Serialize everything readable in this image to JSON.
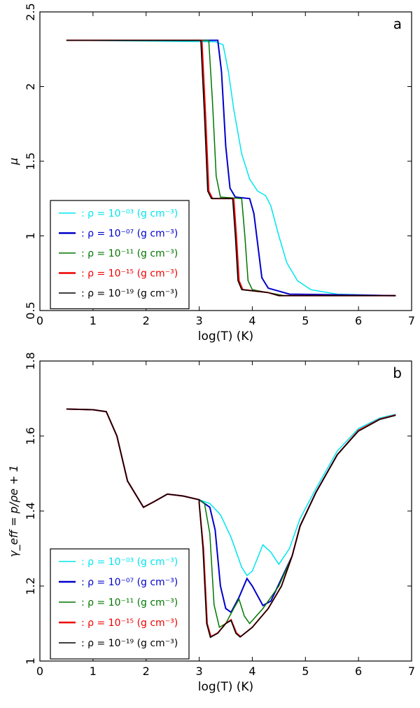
{
  "chart_data": [
    {
      "type": "line",
      "panel_label": "a",
      "xlabel": "log(T) (K)",
      "ylabel": "μ",
      "xlim": [
        0,
        7
      ],
      "ylim": [
        0.5,
        2.5
      ],
      "xticks": [
        "0",
        "1",
        "2",
        "3",
        "4",
        "5",
        "6",
        "7"
      ],
      "yticks": [
        "0.5",
        "1",
        "1.5",
        "2",
        "2.5"
      ],
      "legend_position": "lower-left",
      "series": [
        {
          "name": ": ρ = 10⁻⁰³ (g cm⁻³)",
          "color": "#00e5ee",
          "points": [
            [
              0.5,
              2.31
            ],
            [
              3.3,
              2.3
            ],
            [
              3.45,
              2.28
            ],
            [
              3.55,
              2.1
            ],
            [
              3.65,
              1.85
            ],
            [
              3.8,
              1.55
            ],
            [
              3.95,
              1.38
            ],
            [
              4.1,
              1.3
            ],
            [
              4.25,
              1.27
            ],
            [
              4.35,
              1.2
            ],
            [
              4.5,
              1.0
            ],
            [
              4.65,
              0.82
            ],
            [
              4.85,
              0.7
            ],
            [
              5.1,
              0.64
            ],
            [
              5.6,
              0.61
            ],
            [
              6.7,
              0.6
            ]
          ]
        },
        {
          "name": ": ρ = 10⁻⁰⁷ (g cm⁻³)",
          "color": "#0000cc",
          "points": [
            [
              0.5,
              2.31
            ],
            [
              3.35,
              2.31
            ],
            [
              3.42,
              2.1
            ],
            [
              3.5,
              1.6
            ],
            [
              3.58,
              1.32
            ],
            [
              3.68,
              1.26
            ],
            [
              3.95,
              1.25
            ],
            [
              4.03,
              1.15
            ],
            [
              4.1,
              0.95
            ],
            [
              4.18,
              0.72
            ],
            [
              4.3,
              0.65
            ],
            [
              4.5,
              0.63
            ],
            [
              4.7,
              0.61
            ],
            [
              6.7,
              0.6
            ]
          ]
        },
        {
          "name": ": ρ = 10⁻¹¹ (g cm⁻³)",
          "color": "#007700",
          "points": [
            [
              0.5,
              2.31
            ],
            [
              3.18,
              2.31
            ],
            [
              3.25,
              1.9
            ],
            [
              3.32,
              1.4
            ],
            [
              3.4,
              1.26
            ],
            [
              3.8,
              1.25
            ],
            [
              3.86,
              1.0
            ],
            [
              3.92,
              0.7
            ],
            [
              4.0,
              0.64
            ],
            [
              4.3,
              0.62
            ],
            [
              4.6,
              0.6
            ],
            [
              6.7,
              0.6
            ]
          ]
        },
        {
          "name": ": ρ = 10⁻¹⁵ (g cm⁻³)",
          "color": "#ee0000",
          "points": [
            [
              0.5,
              2.31
            ],
            [
              3.05,
              2.31
            ],
            [
              3.12,
              1.8
            ],
            [
              3.18,
              1.3
            ],
            [
              3.25,
              1.25
            ],
            [
              3.65,
              1.25
            ],
            [
              3.7,
              1.0
            ],
            [
              3.75,
              0.7
            ],
            [
              3.82,
              0.64
            ],
            [
              4.3,
              0.62
            ],
            [
              4.5,
              0.6
            ],
            [
              6.7,
              0.6
            ]
          ]
        },
        {
          "name": ": ρ = 10⁻¹⁹ (g cm⁻³)",
          "color": "#000000",
          "points": [
            [
              0.5,
              2.31
            ],
            [
              3.03,
              2.31
            ],
            [
              3.1,
              1.8
            ],
            [
              3.16,
              1.3
            ],
            [
              3.23,
              1.25
            ],
            [
              3.63,
              1.25
            ],
            [
              3.68,
              1.0
            ],
            [
              3.73,
              0.7
            ],
            [
              3.8,
              0.64
            ],
            [
              4.3,
              0.62
            ],
            [
              4.5,
              0.6
            ],
            [
              6.7,
              0.6
            ]
          ]
        }
      ]
    },
    {
      "type": "line",
      "panel_label": "b",
      "xlabel": "log(T) (K)",
      "ylabel": "γ_eff = p/ρe + 1",
      "xlim": [
        0,
        7
      ],
      "ylim": [
        1.0,
        1.8
      ],
      "xticks": [
        "0",
        "1",
        "2",
        "3",
        "4",
        "5",
        "6",
        "7"
      ],
      "yticks": [
        "1",
        "1.2",
        "1.4",
        "1.6",
        "1.8"
      ],
      "legend_position": "lower-left",
      "common": [
        [
          0.5,
          1.672
        ],
        [
          1.0,
          1.67
        ],
        [
          1.25,
          1.665
        ],
        [
          1.45,
          1.6
        ],
        [
          1.65,
          1.48
        ],
        [
          1.95,
          1.41
        ],
        [
          2.15,
          1.425
        ],
        [
          2.4,
          1.445
        ],
        [
          2.7,
          1.44
        ],
        [
          3.0,
          1.43
        ]
      ],
      "series": [
        {
          "name": ": ρ = 10⁻⁰³ (g cm⁻³)",
          "color": "#00e5ee",
          "points": [
            [
              3.2,
              1.42
            ],
            [
              3.4,
              1.39
            ],
            [
              3.6,
              1.33
            ],
            [
              3.8,
              1.25
            ],
            [
              3.9,
              1.228
            ],
            [
              4.0,
              1.24
            ],
            [
              4.2,
              1.31
            ],
            [
              4.35,
              1.29
            ],
            [
              4.5,
              1.258
            ],
            [
              4.7,
              1.3
            ],
            [
              4.9,
              1.38
            ],
            [
              5.2,
              1.46
            ],
            [
              5.6,
              1.56
            ],
            [
              6.0,
              1.62
            ],
            [
              6.4,
              1.648
            ],
            [
              6.7,
              1.658
            ]
          ]
        },
        {
          "name": ": ρ = 10⁻⁰⁷ (g cm⁻³)",
          "color": "#0000cc",
          "points": [
            [
              3.2,
              1.41
            ],
            [
              3.3,
              1.35
            ],
            [
              3.4,
              1.2
            ],
            [
              3.5,
              1.14
            ],
            [
              3.6,
              1.13
            ],
            [
              3.75,
              1.17
            ],
            [
              3.9,
              1.22
            ],
            [
              4.0,
              1.2
            ],
            [
              4.2,
              1.148
            ],
            [
              4.35,
              1.16
            ],
            [
              4.55,
              1.22
            ],
            [
              4.75,
              1.28
            ],
            [
              4.9,
              1.36
            ],
            [
              5.2,
              1.45
            ],
            [
              5.6,
              1.55
            ],
            [
              6.0,
              1.615
            ],
            [
              6.4,
              1.645
            ],
            [
              6.7,
              1.656
            ]
          ]
        },
        {
          "name": ": ρ = 10⁻¹¹ (g cm⁻³)",
          "color": "#007700",
          "points": [
            [
              3.1,
              1.42
            ],
            [
              3.2,
              1.34
            ],
            [
              3.28,
              1.15
            ],
            [
              3.38,
              1.09
            ],
            [
              3.5,
              1.1
            ],
            [
              3.65,
              1.14
            ],
            [
              3.75,
              1.165
            ],
            [
              3.85,
              1.12
            ],
            [
              3.95,
              1.1
            ],
            [
              4.2,
              1.14
            ],
            [
              4.5,
              1.2
            ],
            [
              4.75,
              1.28
            ],
            [
              4.9,
              1.36
            ],
            [
              5.2,
              1.45
            ],
            [
              5.6,
              1.55
            ],
            [
              6.0,
              1.615
            ],
            [
              6.4,
              1.645
            ],
            [
              6.7,
              1.656
            ]
          ]
        },
        {
          "name": ": ρ = 10⁻¹⁵ (g cm⁻³)",
          "color": "#ee0000",
          "points": [
            [
              3.0,
              1.42
            ],
            [
              3.08,
              1.3
            ],
            [
              3.15,
              1.1
            ],
            [
              3.22,
              1.065
            ],
            [
              3.35,
              1.075
            ],
            [
              3.5,
              1.1
            ],
            [
              3.6,
              1.11
            ],
            [
              3.7,
              1.075
            ],
            [
              3.78,
              1.065
            ],
            [
              4.0,
              1.09
            ],
            [
              4.3,
              1.14
            ],
            [
              4.55,
              1.2
            ],
            [
              4.75,
              1.28
            ],
            [
              4.9,
              1.36
            ],
            [
              5.2,
              1.45
            ],
            [
              5.6,
              1.55
            ],
            [
              6.0,
              1.615
            ],
            [
              6.4,
              1.645
            ],
            [
              6.7,
              1.656
            ]
          ]
        },
        {
          "name": ": ρ = 10⁻¹⁹ (g cm⁻³)",
          "color": "#000000",
          "points": [
            [
              3.0,
              1.42
            ],
            [
              3.07,
              1.3
            ],
            [
              3.14,
              1.1
            ],
            [
              3.21,
              1.063
            ],
            [
              3.35,
              1.074
            ],
            [
              3.5,
              1.1
            ],
            [
              3.6,
              1.108
            ],
            [
              3.69,
              1.074
            ],
            [
              3.77,
              1.064
            ],
            [
              4.0,
              1.09
            ],
            [
              4.3,
              1.14
            ],
            [
              4.55,
              1.2
            ],
            [
              4.75,
              1.28
            ],
            [
              4.9,
              1.36
            ],
            [
              5.2,
              1.45
            ],
            [
              5.6,
              1.55
            ],
            [
              6.0,
              1.613
            ],
            [
              6.4,
              1.644
            ],
            [
              6.7,
              1.655
            ]
          ]
        }
      ]
    }
  ]
}
